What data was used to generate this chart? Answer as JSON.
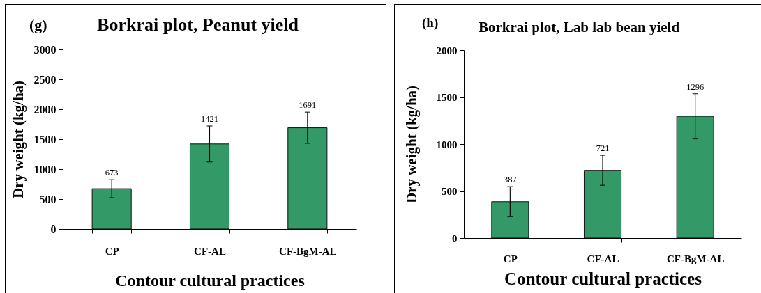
{
  "chart_data": [
    {
      "type": "bar",
      "title": "Borkrai plot, Peanut yield",
      "xlabel": "Contour cultural practices",
      "ylabel": "Dry weight (kg/ha)",
      "annotations": [
        "(g)"
      ],
      "categories": [
        "CP",
        "CF-AL",
        "CF-BgM-AL"
      ],
      "values": [
        673,
        1421,
        1691
      ],
      "errors": [
        150,
        300,
        260
      ],
      "color": "#339966",
      "ylim": [
        0,
        3000
      ],
      "yticks": [
        0,
        500,
        1000,
        1500,
        2000,
        2500,
        3000
      ],
      "data_labels": true
    },
    {
      "type": "bar",
      "title": "Borkrai plot, Lab lab bean yield",
      "xlabel": "Contour cultural practices",
      "ylabel": "Dry weight (kg/ha)",
      "annotations": [
        "(h)"
      ],
      "categories": [
        "CP",
        "CF-AL",
        "CF-BgM-AL"
      ],
      "values": [
        387,
        721,
        1296
      ],
      "errors": [
        160,
        160,
        240
      ],
      "color": "#339966",
      "ylim": [
        0,
        2000
      ],
      "yticks": [
        0,
        500,
        1000,
        1500,
        2000
      ],
      "data_labels": true
    }
  ]
}
